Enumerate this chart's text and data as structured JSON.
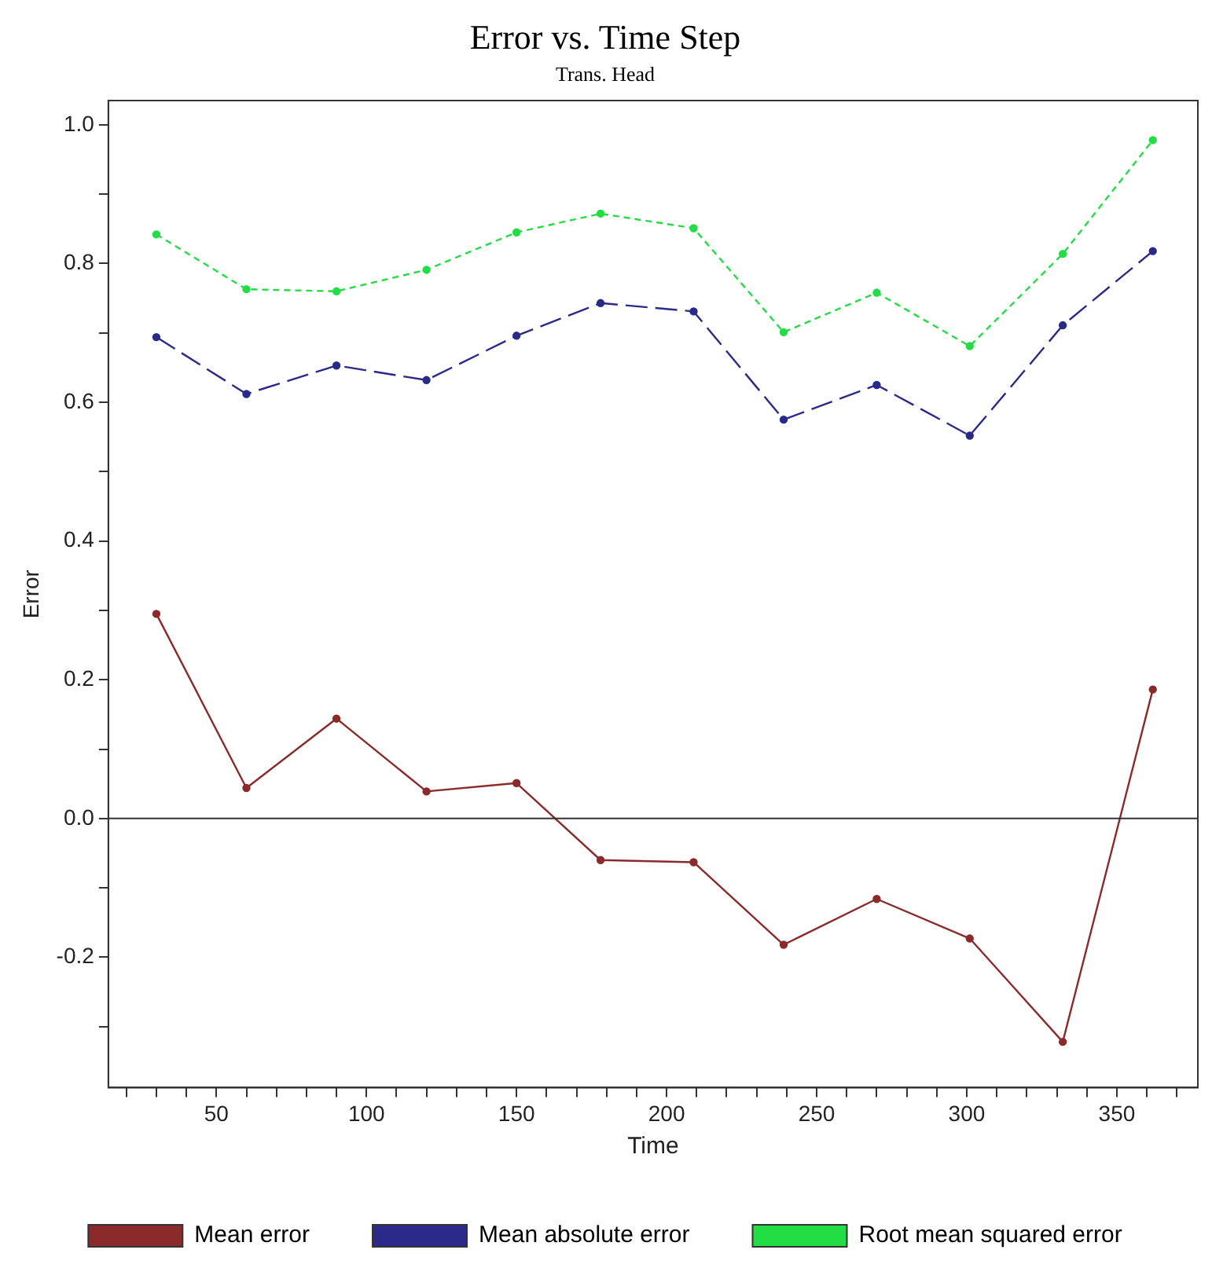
{
  "chart_data": {
    "type": "line",
    "title": "Error vs. Time Step",
    "subtitle": "Trans. Head",
    "xlabel": "Time",
    "ylabel": "Error",
    "x": [
      30,
      60,
      90,
      120,
      150,
      178,
      209,
      239,
      270,
      301,
      332,
      362
    ],
    "series": [
      {
        "name": "Mean error",
        "color": "#8b2a2a",
        "line_style": "solid",
        "values": [
          0.295,
          0.044,
          0.144,
          0.039,
          0.051,
          -0.06,
          -0.063,
          -0.182,
          -0.116,
          -0.173,
          -0.322,
          0.186
        ]
      },
      {
        "name": "Mean absolute error",
        "color": "#2a2a8a",
        "line_style": "dashed",
        "values": [
          0.694,
          0.612,
          0.653,
          0.632,
          0.696,
          0.743,
          0.731,
          0.575,
          0.625,
          0.552,
          0.711,
          0.818
        ]
      },
      {
        "name": "Root mean squared error",
        "color": "#22dd44",
        "line_style": "dotted",
        "values": [
          0.842,
          0.763,
          0.76,
          0.791,
          0.845,
          0.872,
          0.851,
          0.701,
          0.758,
          0.681,
          0.814,
          0.978
        ]
      }
    ],
    "xlim": [
      14,
      377
    ],
    "ylim": [
      -0.388,
      1.035
    ],
    "xticks": [
      {
        "value": 20,
        "label": null
      },
      {
        "value": 30,
        "label": null
      },
      {
        "value": 40,
        "label": null
      },
      50,
      {
        "value": 60,
        "label": null
      },
      {
        "value": 70,
        "label": null
      },
      {
        "value": 80,
        "label": null
      },
      {
        "value": 90,
        "label": null
      },
      100,
      {
        "value": 110,
        "label": null
      },
      {
        "value": 120,
        "label": null
      },
      {
        "value": 130,
        "label": null
      },
      {
        "value": 140,
        "label": null
      },
      150,
      {
        "value": 160,
        "label": null
      },
      {
        "value": 170,
        "label": null
      },
      {
        "value": 180,
        "label": null
      },
      {
        "value": 190,
        "label": null
      },
      200,
      {
        "value": 210,
        "label": null
      },
      {
        "value": 220,
        "label": null
      },
      {
        "value": 230,
        "label": null
      },
      {
        "value": 240,
        "label": null
      },
      250,
      {
        "value": 260,
        "label": null
      },
      {
        "value": 270,
        "label": null
      },
      {
        "value": 280,
        "label": null
      },
      {
        "value": 290,
        "label": null
      },
      300,
      {
        "value": 310,
        "label": null
      },
      {
        "value": 320,
        "label": null
      },
      {
        "value": 330,
        "label": null
      },
      {
        "value": 340,
        "label": null
      },
      350,
      {
        "value": 360,
        "label": null
      },
      {
        "value": 370,
        "label": null
      }
    ],
    "yticks": [
      {
        "value": -0.3,
        "label": null
      },
      {
        "value": -0.2,
        "label": "-0.2"
      },
      {
        "value": -0.1,
        "label": null
      },
      {
        "value": 0,
        "label": "0.0"
      },
      {
        "value": 0.1,
        "label": null
      },
      {
        "value": 0.2,
        "label": "0.2"
      },
      {
        "value": 0.3,
        "label": null
      },
      {
        "value": 0.4,
        "label": "0.4"
      },
      {
        "value": 0.5,
        "label": null
      },
      {
        "value": 0.6,
        "label": "0.6"
      },
      {
        "value": 0.7,
        "label": null
      },
      {
        "value": 0.8,
        "label": "0.8"
      },
      {
        "value": 0.9,
        "label": null
      },
      {
        "value": 1.0,
        "label": "1.0"
      }
    ],
    "ref_lines": [
      {
        "axis": "y",
        "value": 0,
        "color": "#333333"
      }
    ],
    "marker": "circle",
    "legend": "bottom",
    "grid": false
  }
}
